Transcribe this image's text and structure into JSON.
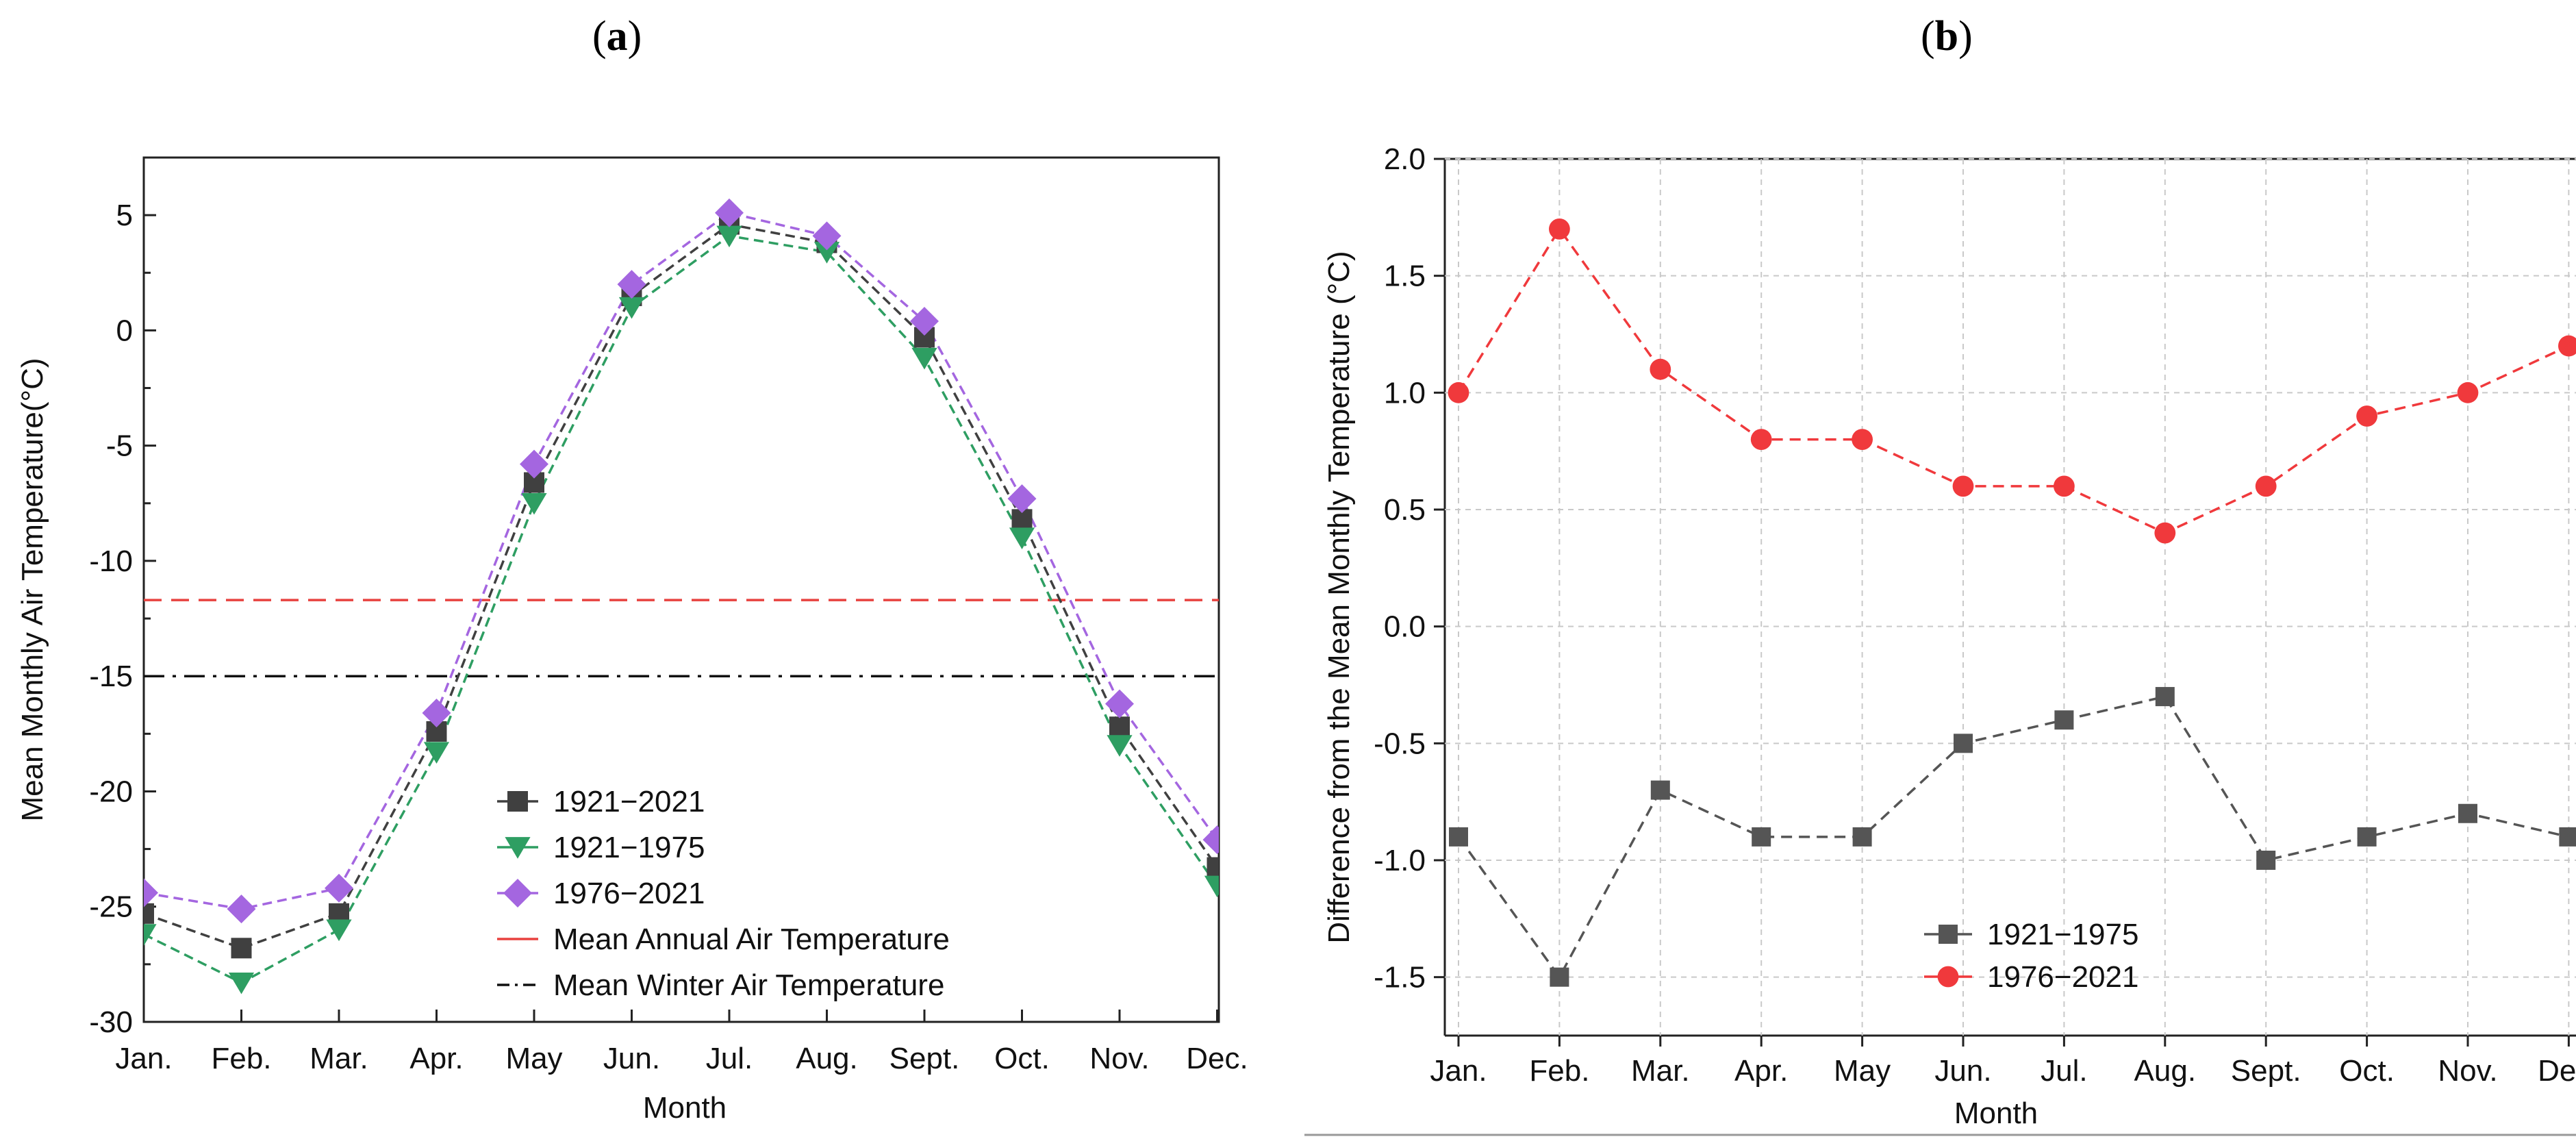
{
  "panel_labels": {
    "a": "a",
    "b": "b"
  },
  "chart_data": [
    {
      "id": "a",
      "type": "line",
      "xlabel": "Month",
      "ylabel": "Mean Monthly Air Temperature(°C)",
      "categories": [
        "Jan.",
        "Feb.",
        "Mar.",
        "Apr.",
        "May",
        "Jun.",
        "Jul.",
        "Aug.",
        "Sept.",
        "Oct.",
        "Nov.",
        "Dec."
      ],
      "ylim": [
        -30,
        7.5
      ],
      "yticks": [
        5,
        0,
        -5,
        -10,
        -15,
        -20,
        -25,
        -30
      ],
      "grid": false,
      "legend_position": "bottom-left",
      "series": [
        {
          "name": "1921−2021",
          "marker": "square",
          "color": "#404040",
          "values": [
            -25.3,
            -26.8,
            -25.3,
            -17.4,
            -6.6,
            1.5,
            4.6,
            3.8,
            -0.3,
            -8.2,
            -17.2,
            -23.3
          ]
        },
        {
          "name": "1921−1975",
          "marker": "triangle-down",
          "color": "#2e9e62",
          "values": [
            -26.2,
            -28.3,
            -26.0,
            -18.3,
            -7.5,
            1.0,
            4.1,
            3.4,
            -1.2,
            -9.0,
            -18.0,
            -24.1
          ]
        },
        {
          "name": "1976−2021",
          "marker": "diamond",
          "color": "#a466e0",
          "values": [
            -24.4,
            -25.1,
            -24.2,
            -16.6,
            -5.8,
            2.0,
            5.1,
            4.1,
            0.4,
            -7.3,
            -16.2,
            -22.1
          ]
        }
      ],
      "reference_lines": [
        {
          "name": "Mean Annual Air Temperature",
          "y": -11.7,
          "color": "#e8423f",
          "style": "dashed"
        },
        {
          "name": "Mean Winter Air Temperature",
          "y": -15.0,
          "color": "#111111",
          "style": "dash-dot"
        }
      ]
    },
    {
      "id": "b",
      "type": "line",
      "xlabel": "Month",
      "ylabel": "Difference from the Mean Monthly Temperature (°C)",
      "categories": [
        "Jan.",
        "Feb.",
        "Mar.",
        "Apr.",
        "May",
        "Jun.",
        "Jul.",
        "Aug.",
        "Sept.",
        "Oct.",
        "Nov.",
        "Dec."
      ],
      "ylim": [
        -1.75,
        2.0
      ],
      "yticks": [
        "2.0",
        "1.5",
        "1.0",
        "0.5",
        "0.0",
        "-0.5",
        "-1.0",
        "-1.5"
      ],
      "grid": true,
      "legend_position": "bottom-left",
      "series": [
        {
          "name": "1921−1975",
          "marker": "square",
          "color": "#555555",
          "values": [
            -0.9,
            -1.5,
            -0.7,
            -0.9,
            -0.9,
            -0.5,
            -0.4,
            -0.3,
            -1.0,
            -0.9,
            -0.8,
            -0.9
          ]
        },
        {
          "name": "1976−2021",
          "marker": "circle",
          "color": "#f0393c",
          "values": [
            1.0,
            1.7,
            1.1,
            0.8,
            0.8,
            0.6,
            0.6,
            0.4,
            0.6,
            0.9,
            1.0,
            1.2
          ]
        }
      ]
    }
  ]
}
